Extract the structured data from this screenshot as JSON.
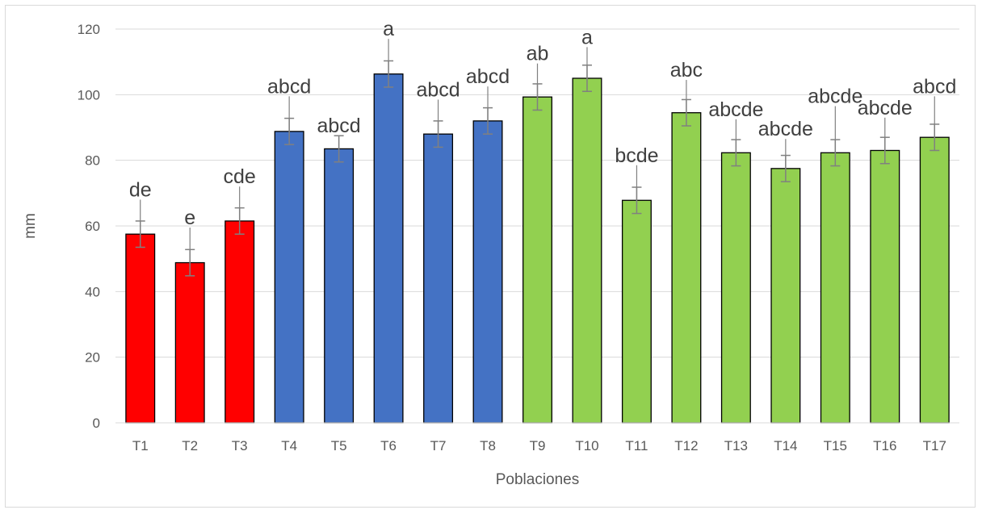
{
  "chart_data": {
    "type": "bar",
    "title": "",
    "xlabel": "Poblaciones",
    "ylabel": "mm",
    "ylim": [
      0,
      120
    ],
    "yticks": [
      0,
      20,
      40,
      60,
      80,
      100,
      120
    ],
    "grid": true,
    "legend": "none",
    "categories": [
      "T1",
      "T2",
      "T3",
      "T4",
      "T5",
      "T6",
      "T7",
      "T8",
      "T9",
      "T10",
      "T11",
      "T12",
      "T13",
      "T14",
      "T15",
      "T16",
      "T17"
    ],
    "values": [
      57.5,
      48.8,
      61.5,
      88.8,
      83.5,
      106.3,
      88,
      92,
      99.3,
      105,
      67.8,
      94.5,
      82.3,
      77.5,
      82.3,
      83,
      87
    ],
    "errors": [
      4,
      4,
      4,
      4,
      4,
      4,
      4,
      4,
      4,
      4,
      4,
      4,
      4,
      4,
      4,
      4,
      4
    ],
    "labels": [
      "de",
      "e",
      "cde",
      "abcd",
      "abcd",
      "a",
      "abcd",
      "abcd",
      "ab",
      "a",
      "bcde",
      "abc",
      "abcde",
      "abcde",
      "abcde",
      "abcde",
      "abcd"
    ],
    "label_tops": [
      68,
      59.5,
      72,
      99.5,
      87.5,
      117,
      98.5,
      102.5,
      109.5,
      114.5,
      78.5,
      104.5,
      92.5,
      86.5,
      96.5,
      93,
      99.5
    ],
    "bar_colors": [
      "#ff0000",
      "#ff0000",
      "#ff0000",
      "#4472c4",
      "#4472c4",
      "#4472c4",
      "#4472c4",
      "#4472c4",
      "#92d050",
      "#92d050",
      "#92d050",
      "#92d050",
      "#92d050",
      "#92d050",
      "#92d050",
      "#92d050",
      "#92d050"
    ],
    "colors": {
      "group1": "#ff0000",
      "group2": "#4472c4",
      "group3": "#92d050",
      "error_bar": "#808080",
      "gridline": "#d9d9d9"
    }
  }
}
